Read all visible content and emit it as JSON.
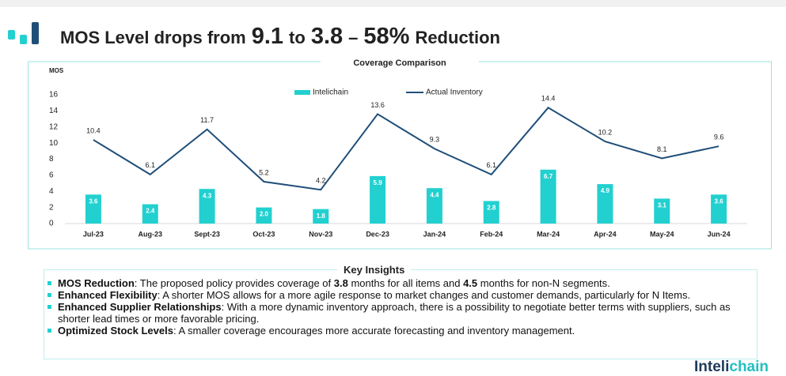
{
  "header": {
    "title": [
      "MOS Level drops from",
      "9.1",
      "to",
      "3.8",
      "–",
      "58%",
      "Reduction"
    ]
  },
  "chart_data": {
    "type": "bar_line",
    "title": "Coverage Comparison",
    "y_label": "MOS",
    "categories": [
      "Jul-23",
      "Aug-23",
      "Sept-23",
      "Oct-23",
      "Nov-23",
      "Dec-23",
      "Jan-24",
      "Feb-24",
      "Mar-24",
      "Apr-24",
      "May-24",
      "Jun-24"
    ],
    "series": [
      {
        "name": "Intelichain",
        "type": "bar",
        "color": "#22d0d0",
        "values": [
          3.6,
          2.4,
          4.3,
          2.0,
          1.8,
          5.9,
          4.4,
          2.8,
          6.7,
          4.9,
          3.1,
          3.6
        ],
        "value_labels": [
          "3.6",
          "2.4",
          "4.3",
          "2.0",
          "1.8",
          "5.9",
          "4.4",
          "2.8",
          "6.7",
          "4.9",
          "3.1",
          "3.6"
        ]
      },
      {
        "name": "Actual Inventory",
        "type": "line",
        "color": "#1f4e79",
        "values": [
          10.4,
          6.1,
          11.7,
          5.2,
          4.2,
          13.6,
          9.3,
          6.1,
          14.4,
          10.2,
          8.1,
          9.6
        ]
      }
    ],
    "ylim": [
      0,
      16
    ],
    "yticks": [
      0,
      2,
      4,
      6,
      8,
      10,
      12,
      14,
      16
    ],
    "grid": false,
    "legend": "top"
  },
  "insights": {
    "title": "Key Insights",
    "items": [
      [
        "MOS Reduction",
        ": The proposed policy provides coverage of ",
        "3.8",
        " months for all items and ",
        "4.5",
        " months for non-N segments."
      ],
      [
        "Enhanced Flexibility",
        ": A shorter MOS allows for a more agile response to market changes and customer demands, particularly for N Items."
      ],
      [
        "Enhanced Supplier Relationships",
        ": With a more dynamic inventory approach, there is a possibility to negotiate better terms with suppliers, such as shorter lead times or more favorable pricing."
      ],
      [
        "Optimized Stock Levels",
        ": A smaller coverage encourages more accurate forecasting and inventory management."
      ]
    ]
  },
  "logo": [
    "Inteli",
    "chain"
  ]
}
